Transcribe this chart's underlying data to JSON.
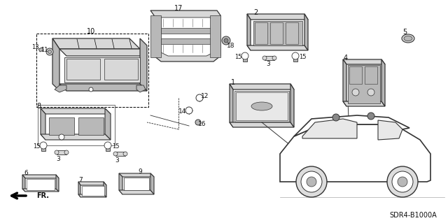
{
  "background_color": "#ffffff",
  "diagram_code": "SDR4-B1000A",
  "parts_text_color": "#111111",
  "line_color": "#333333",
  "fill_light": "#d8d8d8",
  "fill_medium": "#b8b8b8",
  "fill_dark": "#888888"
}
